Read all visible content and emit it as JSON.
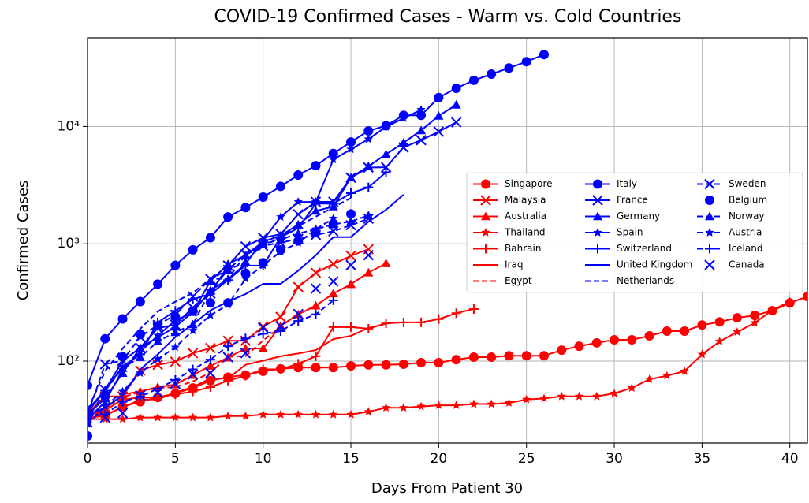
{
  "chart_data": {
    "type": "line",
    "title": "COVID-19 Confirmed Cases - Warm vs. Cold Countries",
    "x_label": "Days From Patient 30",
    "y_label": "Confirmed Cases",
    "xlim": [
      0,
      41
    ],
    "xticks": [
      0,
      5,
      10,
      15,
      20,
      25,
      30,
      35,
      40
    ],
    "ylim": [
      20,
      57000
    ],
    "yscale": "log",
    "yticks": [
      {
        "value": 100,
        "label": "10²"
      },
      {
        "value": 1000,
        "label": "10³"
      },
      {
        "value": 10000,
        "label": "10⁴"
      }
    ],
    "grid": true,
    "legend_loc": "center right",
    "series": [
      {
        "name": "Singapore",
        "color": "#ff0000",
        "marker": "circle",
        "linestyle": "solid",
        "values": [
          33,
          34,
          41,
          45,
          49,
          53,
          59,
          68,
          73,
          76,
          82,
          86,
          88,
          88,
          88,
          91,
          93,
          93,
          94,
          97,
          97,
          103,
          108,
          108,
          111,
          111,
          111,
          124,
          134,
          143,
          152,
          152,
          164,
          180,
          180,
          203,
          216,
          234,
          245,
          269,
          313,
          355
        ]
      },
      {
        "name": "Malaysia",
        "color": "#ff0000",
        "marker": "x",
        "linestyle": "solid",
        "values": [
          36,
          50,
          50,
          83,
          93,
          99,
          117,
          129,
          149,
          149,
          197,
          238,
          428,
          566,
          673,
          790,
          900
        ]
      },
      {
        "name": "Australia",
        "color": "#ff0000",
        "marker": "triangle",
        "linestyle": "solid",
        "values": [
          30,
          39,
          52,
          55,
          60,
          63,
          76,
          91,
          107,
          128,
          128,
          200,
          250,
          297,
          377,
          452,
          568,
          681
        ]
      },
      {
        "name": "Thailand",
        "color": "#ff0000",
        "marker": "star",
        "linestyle": "solid",
        "values": [
          32,
          32,
          32,
          33,
          33,
          33,
          33,
          33,
          34,
          34,
          35,
          35,
          35,
          35,
          35,
          35,
          37,
          40,
          40,
          41,
          42,
          42,
          43,
          43,
          44,
          47,
          48,
          50,
          50,
          50,
          53,
          59,
          70,
          75,
          82,
          114,
          147,
          177,
          212,
          272,
          322
        ]
      },
      {
        "name": "Bahrain",
        "color": "#ff0000",
        "marker": "plus",
        "linestyle": "solid",
        "values": [
          33,
          38,
          47,
          49,
          49,
          52,
          55,
          60,
          68,
          75,
          85,
          85,
          95,
          110,
          195,
          195,
          189,
          210,
          214,
          214,
          228,
          256,
          278
        ]
      },
      {
        "name": "Iraq",
        "color": "#ff0000",
        "marker": "none",
        "linestyle": "solid",
        "values": [
          32,
          35,
          40,
          47,
          47,
          54,
          60,
          71,
          71,
          93,
          101,
          110,
          116,
          124,
          154,
          164,
          192,
          208
        ]
      },
      {
        "name": "Egypt",
        "color": "#ff0000",
        "marker": "none",
        "linestyle": "dashed",
        "values": [
          33,
          40,
          49,
          55,
          59,
          60,
          67,
          80,
          109,
          110,
          150,
          196,
          256
        ]
      },
      {
        "name": "Italy",
        "color": "#0000ff",
        "marker": "circle",
        "linestyle": "solid",
        "values": [
          62,
          155,
          229,
          322,
          453,
          655,
          888,
          1128,
          1694,
          2036,
          2502,
          3089,
          3858,
          4636,
          5883,
          7375,
          9172,
          10149,
          12462,
          12462,
          17660,
          21157,
          24747,
          27980,
          31506,
          35713,
          41035
        ]
      },
      {
        "name": "France",
        "color": "#0000ff",
        "marker": "x",
        "linestyle": "solid",
        "values": [
          38,
          57,
          100,
          130,
          191,
          204,
          285,
          377,
          653,
          949,
          1126,
          1209,
          1784,
          2281,
          2281,
          3661,
          4469,
          4499,
          6633,
          7652,
          9043,
          10871
        ]
      },
      {
        "name": "Germany",
        "color": "#0000ff",
        "marker": "triangle",
        "linestyle": "solid",
        "values": [
          35,
          48,
          79,
          130,
          159,
          196,
          262,
          482,
          670,
          799,
          1040,
          1176,
          1457,
          1908,
          2078,
          3675,
          4585,
          5795,
          7272,
          9257,
          12327,
          15320
        ]
      },
      {
        "name": "Spain",
        "color": "#0000ff",
        "marker": "star",
        "linestyle": "solid",
        "values": [
          32,
          45,
          84,
          120,
          165,
          222,
          259,
          400,
          500,
          673,
          1073,
          1695,
          2277,
          2277,
          5232,
          6391,
          7798,
          9942,
          11748,
          13910
        ]
      },
      {
        "name": "Switzerland",
        "color": "#0000ff",
        "marker": "plus",
        "linestyle": "solid",
        "values": [
          37,
          56,
          90,
          114,
          214,
          268,
          337,
          374,
          491,
          652,
          652,
          1139,
          1359,
          2200,
          2200,
          2700,
          3028,
          4075
        ]
      },
      {
        "name": "United Kingdom",
        "color": "#0000ff",
        "marker": "none",
        "linestyle": "solid",
        "values": [
          35,
          40,
          51,
          85,
          114,
          160,
          206,
          271,
          321,
          373,
          456,
          456,
          590,
          798,
          1140,
          1140,
          1543,
          1950,
          2626
        ]
      },
      {
        "name": "Netherlands",
        "color": "#0000ff",
        "marker": "none",
        "linestyle": "dashed",
        "values": [
          38,
          82,
          128,
          188,
          265,
          321,
          382,
          503,
          503,
          804,
          959,
          1135,
          1413,
          1705,
          2051,
          2460
        ]
      },
      {
        "name": "Sweden",
        "color": "#0000ff",
        "marker": "x",
        "linestyle": "dashed",
        "values": [
          35,
          94,
          101,
          161,
          203,
          248,
          355,
          500,
          599,
          814,
          961,
          1022,
          1103,
          1190,
          1279,
          1439,
          1639
        ]
      },
      {
        "name": "Belgium",
        "color": "#0000ff",
        "marker": "circle",
        "linestyle": "none",
        "values": [
          23,
          50,
          109,
          169,
          200,
          239,
          267,
          314,
          314,
          559,
          689,
          886,
          1058,
          1243,
          1486,
          1795
        ]
      },
      {
        "name": "Norway",
        "color": "#0000ff",
        "marker": "triangle",
        "linestyle": "dashed",
        "values": [
          32,
          56,
          87,
          108,
          147,
          176,
          205,
          400,
          598,
          702,
          996,
          1090,
          1221,
          1333,
          1463,
          1550,
          1746
        ]
      },
      {
        "name": "Austria",
        "color": "#0000ff",
        "marker": "star",
        "linestyle": "dashed",
        "values": [
          29,
          41,
          55,
          79,
          104,
          131,
          182,
          246,
          302,
          504,
          655,
          860,
          1018,
          1332,
          1646
        ]
      },
      {
        "name": "Iceland",
        "color": "#0000ff",
        "marker": "plus",
        "linestyle": "dashed",
        "values": [
          34,
          35,
          45,
          50,
          58,
          69,
          85,
          103,
          134,
          156,
          171,
          180,
          220,
          250,
          330
        ]
      },
      {
        "name": "Canada",
        "color": "#0000ff",
        "marker": "x",
        "linestyle": "none",
        "values": [
          30,
          33,
          36,
          51,
          54,
          64,
          77,
          79,
          108,
          117,
          193,
          198,
          252,
          415,
          478,
          657,
          800
        ]
      }
    ]
  }
}
